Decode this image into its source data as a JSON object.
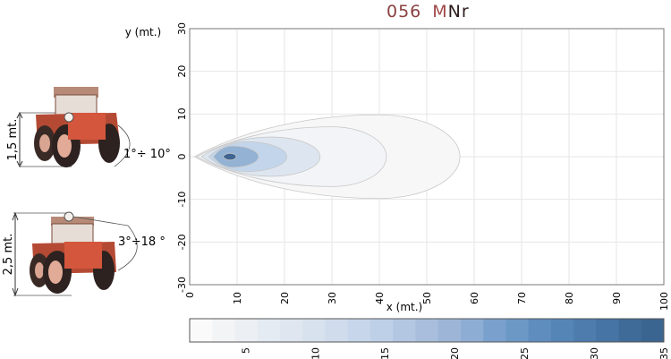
{
  "title": {
    "code": "056",
    "m": "M",
    "nr": "Nr"
  },
  "tractors": [
    {
      "height_label": "1,5 mt.",
      "angle_label": "1°÷ 10°"
    },
    {
      "height_label": "2,5 mt.",
      "angle_label": "3°÷18 °"
    }
  ],
  "chart_data": {
    "type": "heatmap",
    "subtype": "contour",
    "xlabel": "x (mt.)",
    "ylabel": "y (mt.)",
    "xlim": [
      0,
      100
    ],
    "ylim": [
      -30,
      30
    ],
    "xticks": [
      "0",
      "10",
      "20",
      "30",
      "40",
      "50",
      "60",
      "70",
      "80",
      "90",
      "100"
    ],
    "yticks": [
      "30",
      "20",
      "10",
      "0",
      "-10",
      "-20",
      "-30"
    ],
    "grid": true,
    "contours": [
      {
        "level": 1,
        "x_start": 1,
        "x_end": 57,
        "half_width": 9.8,
        "peak_x": 40,
        "color": "#f7f7f8"
      },
      {
        "level": 3,
        "x_start": 1.5,
        "x_end": 41.5,
        "half_width": 7.0,
        "peak_x": 30,
        "color": "#f2f4f7"
      },
      {
        "level": 8,
        "x_start": 2.5,
        "x_end": 27.5,
        "half_width": 4.6,
        "peak_x": 17,
        "color": "#dde6f0"
      },
      {
        "level": 13,
        "x_start": 4,
        "x_end": 20.5,
        "half_width": 3.5,
        "peak_x": 12,
        "color": "#c2d5ea"
      },
      {
        "level": 21,
        "x_start": 5,
        "x_end": 14.5,
        "half_width": 2.5,
        "peak_x": 9,
        "color": "#93b2d4"
      },
      {
        "level": 33,
        "x_start": 7,
        "x_end": 9.8,
        "half_width": 0.8,
        "peak_x": 8.5,
        "color": "#3f6590"
      }
    ],
    "colorbar": {
      "min": 1,
      "max": 35,
      "ticks": [
        "5",
        "10",
        "15",
        "20",
        "25",
        "30",
        "35"
      ],
      "colors": [
        "#fafafa",
        "#f3f4f6",
        "#eceff3",
        "#e5ebf2",
        "#dfe6ef",
        "#d8e2ee",
        "#d0dcec",
        "#c7d6ea",
        "#bdd0e8",
        "#b3c7e3",
        "#a8bedc",
        "#9db6d8",
        "#8eadd4",
        "#7aa1cd",
        "#6c98c6",
        "#5f8dbd",
        "#5585b6",
        "#4d7cad",
        "#4674a4",
        "#3f6b99",
        "#3a6590"
      ]
    }
  }
}
